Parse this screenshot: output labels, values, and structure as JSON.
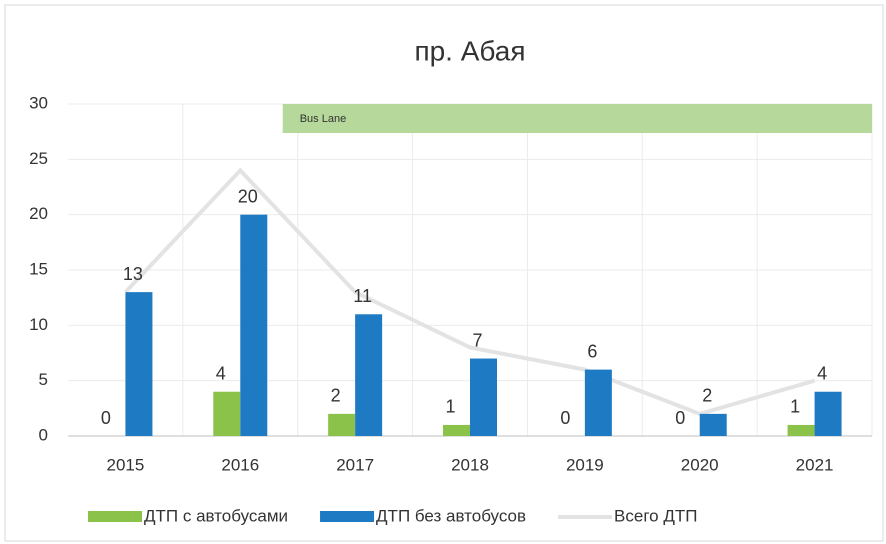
{
  "chart_data": {
    "type": "bar_line",
    "title": "пр. Абая",
    "categories": [
      "2015",
      "2016",
      "2017",
      "2018",
      "2019",
      "2020",
      "2021"
    ],
    "series": [
      {
        "name": "ДТП с автобусами",
        "color": "#8bc34a",
        "values": [
          0,
          4,
          2,
          1,
          0,
          0,
          1
        ]
      },
      {
        "name": "ДТП без автобусов",
        "color": "#1f7ac4",
        "values": [
          13,
          20,
          11,
          7,
          6,
          2,
          4
        ]
      },
      {
        "name": "Всего ДТП",
        "color": "#e3e3e3",
        "type": "line",
        "values": [
          13,
          24,
          13,
          8,
          6,
          2,
          5
        ]
      }
    ],
    "annotation": "Bus Lane",
    "ylim": [
      0,
      30
    ],
    "yticks": [
      0,
      5,
      10,
      15,
      20,
      25,
      30
    ],
    "grid": true,
    "legend": "bottom"
  }
}
